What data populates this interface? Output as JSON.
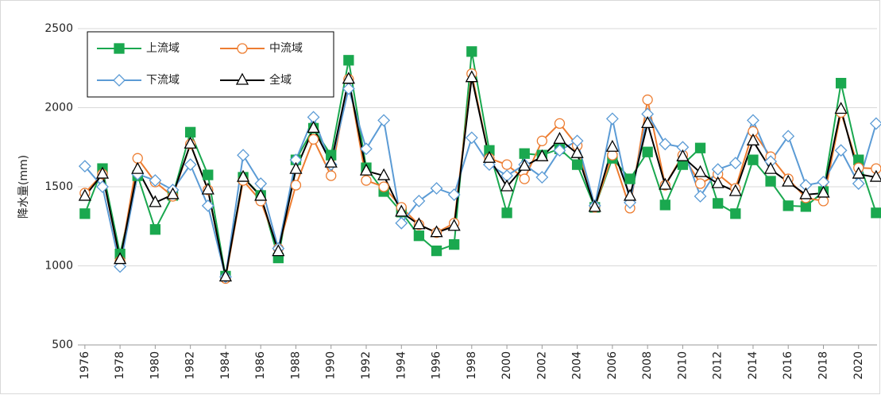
{
  "chart_data": {
    "type": "line",
    "y_label": "降水量(mm)",
    "x": [
      1976,
      1977,
      1978,
      1979,
      1980,
      1981,
      1982,
      1983,
      1984,
      1985,
      1986,
      1987,
      1988,
      1989,
      1990,
      1991,
      1992,
      1993,
      1994,
      1995,
      1996,
      1997,
      1998,
      1999,
      2000,
      2001,
      2002,
      2003,
      2004,
      2005,
      2006,
      2007,
      2008,
      2009,
      2010,
      2011,
      2012,
      2013,
      2014,
      2015,
      2016,
      2017,
      2018,
      2019,
      2020,
      2021
    ],
    "xlim": [
      1975.6,
      2021.05
    ],
    "xticks": [
      1976,
      1978,
      1980,
      1982,
      1984,
      1986,
      1988,
      1990,
      1992,
      1994,
      1996,
      1998,
      2000,
      2002,
      2004,
      2006,
      2008,
      2010,
      2012,
      2014,
      2016,
      2018,
      2020
    ],
    "ylim": [
      500,
      2500
    ],
    "yticks": [
      500,
      1000,
      1500,
      2000,
      2500
    ],
    "grid": true,
    "legend": "upper-left",
    "series": [
      {
        "name": "上流域",
        "color": "#1aa84f",
        "marker": "square-filled",
        "values": [
          1330,
          1615,
          1075,
          1570,
          1230,
          1445,
          1845,
          1575,
          935,
          1560,
          1445,
          1050,
          1670,
          1870,
          1700,
          2300,
          1620,
          1470,
          1340,
          1190,
          1095,
          1135,
          2355,
          1730,
          1335,
          1710,
          1700,
          1740,
          1640,
          1370,
          1680,
          1550,
          1720,
          1385,
          1640,
          1745,
          1395,
          1330,
          1670,
          1535,
          1380,
          1375,
          1470,
          2155,
          1670,
          1335
        ]
      },
      {
        "name": "中流域",
        "color": "#ed7d31",
        "marker": "circle-open",
        "values": [
          1460,
          1580,
          1030,
          1680,
          1530,
          1440,
          1770,
          1480,
          920,
          1540,
          1410,
          1110,
          1510,
          1800,
          1570,
          2180,
          1540,
          1500,
          1370,
          1260,
          1210,
          1270,
          2215,
          1680,
          1640,
          1550,
          1790,
          1900,
          1760,
          1370,
          1700,
          1365,
          2050,
          1510,
          1700,
          1520,
          1580,
          1490,
          1850,
          1690,
          1550,
          1430,
          1410,
          1970,
          1620,
          1615
        ]
      },
      {
        "name": "下流域",
        "color": "#5b9bd5",
        "marker": "diamond-open",
        "values": [
          1630,
          1500,
          995,
          1580,
          1540,
          1480,
          1640,
          1380,
          930,
          1700,
          1520,
          1110,
          1670,
          1940,
          1640,
          2120,
          1740,
          1920,
          1270,
          1410,
          1490,
          1450,
          1810,
          1640,
          1570,
          1640,
          1560,
          1730,
          1790,
          1380,
          1930,
          1400,
          1960,
          1770,
          1750,
          1440,
          1610,
          1650,
          1920,
          1660,
          1820,
          1510,
          1530,
          1730,
          1520,
          1900
        ]
      },
      {
        "name": "全域",
        "color": "#000000",
        "marker": "triangle-open",
        "values": [
          1440,
          1580,
          1040,
          1610,
          1400,
          1450,
          1770,
          1480,
          930,
          1560,
          1440,
          1090,
          1610,
          1870,
          1650,
          2180,
          1600,
          1570,
          1340,
          1260,
          1210,
          1250,
          2190,
          1680,
          1500,
          1630,
          1690,
          1800,
          1710,
          1370,
          1750,
          1440,
          1900,
          1510,
          1690,
          1590,
          1520,
          1470,
          1790,
          1610,
          1530,
          1450,
          1460,
          1990,
          1580,
          1560
        ]
      }
    ]
  }
}
